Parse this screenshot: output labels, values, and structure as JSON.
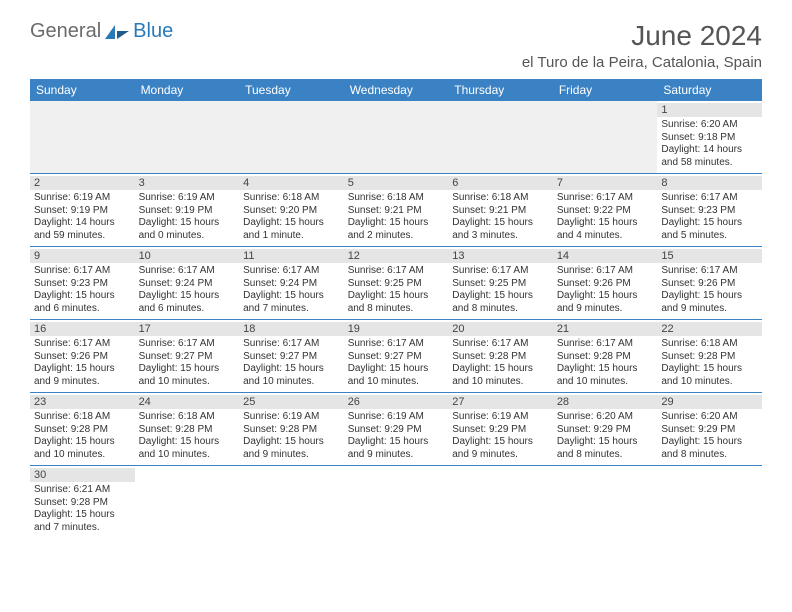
{
  "logo": {
    "general": "General",
    "blue": "Blue"
  },
  "title": "June 2024",
  "location": "el Turo de la Peira, Catalonia, Spain",
  "colors": {
    "header_bg": "#3b82c4",
    "header_text": "#ffffff",
    "day_bar_bg": "#e5e5e5",
    "border": "#3b82c4",
    "logo_gray": "#6b6b6b",
    "logo_blue": "#2a7ab8",
    "title_color": "#555555"
  },
  "weekdays": [
    "Sunday",
    "Monday",
    "Tuesday",
    "Wednesday",
    "Thursday",
    "Friday",
    "Saturday"
  ],
  "weeks": [
    [
      null,
      null,
      null,
      null,
      null,
      null,
      {
        "n": "1",
        "sr": "Sunrise: 6:20 AM",
        "ss": "Sunset: 9:18 PM",
        "d1": "Daylight: 14 hours",
        "d2": "and 58 minutes."
      }
    ],
    [
      {
        "n": "2",
        "sr": "Sunrise: 6:19 AM",
        "ss": "Sunset: 9:19 PM",
        "d1": "Daylight: 14 hours",
        "d2": "and 59 minutes."
      },
      {
        "n": "3",
        "sr": "Sunrise: 6:19 AM",
        "ss": "Sunset: 9:19 PM",
        "d1": "Daylight: 15 hours",
        "d2": "and 0 minutes."
      },
      {
        "n": "4",
        "sr": "Sunrise: 6:18 AM",
        "ss": "Sunset: 9:20 PM",
        "d1": "Daylight: 15 hours",
        "d2": "and 1 minute."
      },
      {
        "n": "5",
        "sr": "Sunrise: 6:18 AM",
        "ss": "Sunset: 9:21 PM",
        "d1": "Daylight: 15 hours",
        "d2": "and 2 minutes."
      },
      {
        "n": "6",
        "sr": "Sunrise: 6:18 AM",
        "ss": "Sunset: 9:21 PM",
        "d1": "Daylight: 15 hours",
        "d2": "and 3 minutes."
      },
      {
        "n": "7",
        "sr": "Sunrise: 6:17 AM",
        "ss": "Sunset: 9:22 PM",
        "d1": "Daylight: 15 hours",
        "d2": "and 4 minutes."
      },
      {
        "n": "8",
        "sr": "Sunrise: 6:17 AM",
        "ss": "Sunset: 9:23 PM",
        "d1": "Daylight: 15 hours",
        "d2": "and 5 minutes."
      }
    ],
    [
      {
        "n": "9",
        "sr": "Sunrise: 6:17 AM",
        "ss": "Sunset: 9:23 PM",
        "d1": "Daylight: 15 hours",
        "d2": "and 6 minutes."
      },
      {
        "n": "10",
        "sr": "Sunrise: 6:17 AM",
        "ss": "Sunset: 9:24 PM",
        "d1": "Daylight: 15 hours",
        "d2": "and 6 minutes."
      },
      {
        "n": "11",
        "sr": "Sunrise: 6:17 AM",
        "ss": "Sunset: 9:24 PM",
        "d1": "Daylight: 15 hours",
        "d2": "and 7 minutes."
      },
      {
        "n": "12",
        "sr": "Sunrise: 6:17 AM",
        "ss": "Sunset: 9:25 PM",
        "d1": "Daylight: 15 hours",
        "d2": "and 8 minutes."
      },
      {
        "n": "13",
        "sr": "Sunrise: 6:17 AM",
        "ss": "Sunset: 9:25 PM",
        "d1": "Daylight: 15 hours",
        "d2": "and 8 minutes."
      },
      {
        "n": "14",
        "sr": "Sunrise: 6:17 AM",
        "ss": "Sunset: 9:26 PM",
        "d1": "Daylight: 15 hours",
        "d2": "and 9 minutes."
      },
      {
        "n": "15",
        "sr": "Sunrise: 6:17 AM",
        "ss": "Sunset: 9:26 PM",
        "d1": "Daylight: 15 hours",
        "d2": "and 9 minutes."
      }
    ],
    [
      {
        "n": "16",
        "sr": "Sunrise: 6:17 AM",
        "ss": "Sunset: 9:26 PM",
        "d1": "Daylight: 15 hours",
        "d2": "and 9 minutes."
      },
      {
        "n": "17",
        "sr": "Sunrise: 6:17 AM",
        "ss": "Sunset: 9:27 PM",
        "d1": "Daylight: 15 hours",
        "d2": "and 10 minutes."
      },
      {
        "n": "18",
        "sr": "Sunrise: 6:17 AM",
        "ss": "Sunset: 9:27 PM",
        "d1": "Daylight: 15 hours",
        "d2": "and 10 minutes."
      },
      {
        "n": "19",
        "sr": "Sunrise: 6:17 AM",
        "ss": "Sunset: 9:27 PM",
        "d1": "Daylight: 15 hours",
        "d2": "and 10 minutes."
      },
      {
        "n": "20",
        "sr": "Sunrise: 6:17 AM",
        "ss": "Sunset: 9:28 PM",
        "d1": "Daylight: 15 hours",
        "d2": "and 10 minutes."
      },
      {
        "n": "21",
        "sr": "Sunrise: 6:17 AM",
        "ss": "Sunset: 9:28 PM",
        "d1": "Daylight: 15 hours",
        "d2": "and 10 minutes."
      },
      {
        "n": "22",
        "sr": "Sunrise: 6:18 AM",
        "ss": "Sunset: 9:28 PM",
        "d1": "Daylight: 15 hours",
        "d2": "and 10 minutes."
      }
    ],
    [
      {
        "n": "23",
        "sr": "Sunrise: 6:18 AM",
        "ss": "Sunset: 9:28 PM",
        "d1": "Daylight: 15 hours",
        "d2": "and 10 minutes."
      },
      {
        "n": "24",
        "sr": "Sunrise: 6:18 AM",
        "ss": "Sunset: 9:28 PM",
        "d1": "Daylight: 15 hours",
        "d2": "and 10 minutes."
      },
      {
        "n": "25",
        "sr": "Sunrise: 6:19 AM",
        "ss": "Sunset: 9:28 PM",
        "d1": "Daylight: 15 hours",
        "d2": "and 9 minutes."
      },
      {
        "n": "26",
        "sr": "Sunrise: 6:19 AM",
        "ss": "Sunset: 9:29 PM",
        "d1": "Daylight: 15 hours",
        "d2": "and 9 minutes."
      },
      {
        "n": "27",
        "sr": "Sunrise: 6:19 AM",
        "ss": "Sunset: 9:29 PM",
        "d1": "Daylight: 15 hours",
        "d2": "and 9 minutes."
      },
      {
        "n": "28",
        "sr": "Sunrise: 6:20 AM",
        "ss": "Sunset: 9:29 PM",
        "d1": "Daylight: 15 hours",
        "d2": "and 8 minutes."
      },
      {
        "n": "29",
        "sr": "Sunrise: 6:20 AM",
        "ss": "Sunset: 9:29 PM",
        "d1": "Daylight: 15 hours",
        "d2": "and 8 minutes."
      }
    ],
    [
      {
        "n": "30",
        "sr": "Sunrise: 6:21 AM",
        "ss": "Sunset: 9:28 PM",
        "d1": "Daylight: 15 hours",
        "d2": "and 7 minutes."
      },
      null,
      null,
      null,
      null,
      null,
      null
    ]
  ]
}
